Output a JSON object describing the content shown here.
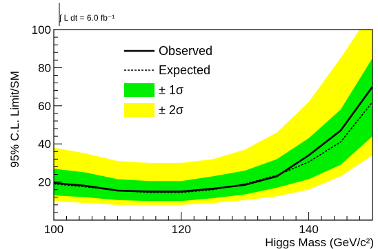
{
  "chart_data": {
    "type": "line",
    "title": "",
    "xlabel": "Higgs Mass (GeV/c²)",
    "ylabel": "95% C.L. Limit/SM",
    "xlim": [
      100,
      150
    ],
    "ylim": [
      0,
      100
    ],
    "grid": false,
    "legend_placement": "top-left",
    "annotation": "∫ L dt = 6.0 fb⁻¹",
    "x_ticks": [
      100,
      120,
      140
    ],
    "y_ticks": [
      20,
      40,
      60,
      80,
      100
    ],
    "x": [
      100,
      105,
      110,
      115,
      120,
      125,
      130,
      135,
      140,
      145,
      150
    ],
    "series": [
      {
        "name": "Observed",
        "values": [
          19.5,
          18.0,
          15.5,
          15.0,
          15.0,
          16.5,
          18.5,
          23.0,
          34.0,
          47.0,
          70.0
        ],
        "color": "#000000",
        "style": "solid"
      },
      {
        "name": "Expected",
        "values": [
          19.0,
          17.5,
          15.5,
          14.5,
          14.5,
          16.0,
          19.0,
          23.5,
          30.5,
          41.0,
          62.0
        ],
        "color": "#000000",
        "style": "dashed"
      }
    ],
    "bands": [
      {
        "name": "± 2σ",
        "color": "#ffff00",
        "lower": [
          10.0,
          9.0,
          8.0,
          8.0,
          8.0,
          9.0,
          10.5,
          12.5,
          16.0,
          23.0,
          34.0
        ],
        "upper": [
          38.0,
          35.0,
          31.0,
          30.0,
          30.0,
          32.0,
          37.0,
          46.0,
          62.0,
          85.0,
          110.0
        ]
      },
      {
        "name": "± 1σ",
        "color": "#00ee00",
        "lower": [
          13.0,
          12.0,
          10.5,
          10.0,
          10.0,
          11.5,
          13.5,
          17.0,
          21.5,
          29.0,
          44.0
        ],
        "upper": [
          27.0,
          25.0,
          21.5,
          20.5,
          20.5,
          23.0,
          26.0,
          32.0,
          43.0,
          58.0,
          85.0
        ]
      }
    ],
    "legend": [
      {
        "label": "Observed",
        "kind": "line-solid"
      },
      {
        "label": "Expected",
        "kind": "line-dashed"
      },
      {
        "label": "± 1σ",
        "kind": "box",
        "color": "#00ee00"
      },
      {
        "label": "± 2σ",
        "kind": "box",
        "color": "#ffff00"
      }
    ]
  }
}
